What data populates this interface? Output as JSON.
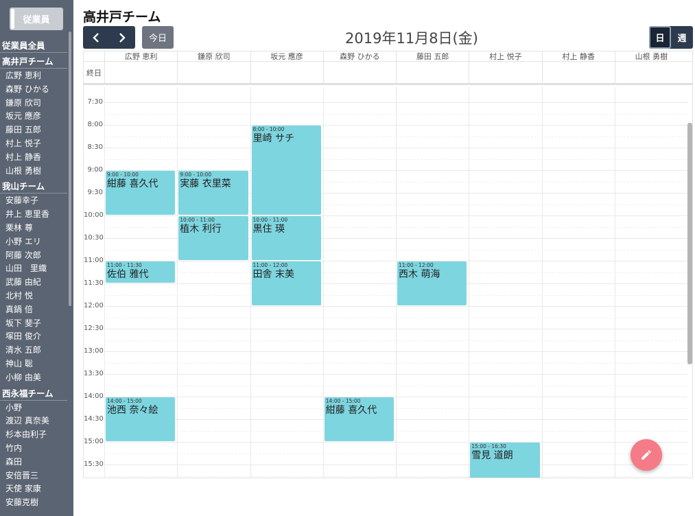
{
  "sidebar": {
    "toggle_label": "従業員",
    "groups": [
      {
        "name": "従業員全員",
        "items": []
      },
      {
        "name": "高井戸チーム",
        "items": [
          "広野 恵利",
          "森野 ひかる",
          "鎌原 欣司",
          "坂元 應彦",
          "藤田 五郎",
          "村上 悦子",
          "村上 静香",
          "山根 勇樹"
        ]
      },
      {
        "name": "我山チーム",
        "items": [
          "安藤幸子",
          "井上 恵里香",
          "栗林 尊",
          "小野 エリ",
          "阿藤 次郎",
          "山田　里織",
          "武藤 由紀",
          "北村 悦",
          "真鍋 倍",
          "坂下 斐子",
          "塚田 俊介",
          "清水 五郎",
          "神山 聡",
          "小柳 由美"
        ]
      },
      {
        "name": "西永福チーム",
        "items": [
          "小野",
          "渡辺 真奈美",
          "杉本由利子",
          "竹内",
          "森田",
          "安倍晋三",
          "天使 家康",
          "安藤克樹"
        ]
      }
    ]
  },
  "header": {
    "team_title": "高井戸チーム",
    "today_label": "今日",
    "date_label": "2019年11月8日(金)",
    "view_day": "日",
    "view_week": "週",
    "prev_icon": "chevron-left-icon",
    "next_icon": "chevron-right-icon"
  },
  "calendar": {
    "allday_label": "終日",
    "columns": [
      "広野 恵利",
      "鎌原 欣司",
      "坂元 應彦",
      "森野 ひかる",
      "藤田 五郎",
      "村上 悦子",
      "村上 静香",
      "山根 勇樹"
    ],
    "start_hour": 7,
    "time_labels": [
      "7:30",
      "8:00",
      "8:30",
      "9:00",
      "9:30",
      "10:00",
      "10:30",
      "11:00",
      "11:30",
      "12:00",
      "12:30",
      "13:00",
      "13:30",
      "14:00",
      "14:30",
      "15:00",
      "15:30"
    ],
    "events": [
      {
        "col": 2,
        "start": 8.0,
        "end": 10.0,
        "time": "8:00 - 10:00",
        "name": "里崎 サチ"
      },
      {
        "col": 0,
        "start": 9.0,
        "end": 10.0,
        "time": "9:00 - 10:00",
        "name": "紺藤 喜久代"
      },
      {
        "col": 1,
        "start": 9.0,
        "end": 10.0,
        "time": "9:00 - 10:00",
        "name": "実藤 衣里菜"
      },
      {
        "col": 1,
        "start": 10.0,
        "end": 11.0,
        "time": "10:00 - 11:00",
        "name": "植木 利行"
      },
      {
        "col": 2,
        "start": 10.0,
        "end": 11.0,
        "time": "10:00 - 11:00",
        "name": "黒住 瑛"
      },
      {
        "col": 0,
        "start": 11.0,
        "end": 11.5,
        "time": "11:00 - 11:30",
        "name": "佐伯 雅代"
      },
      {
        "col": 2,
        "start": 11.0,
        "end": 12.0,
        "time": "11:00 - 12:00",
        "name": "田舎 末美"
      },
      {
        "col": 4,
        "start": 11.0,
        "end": 12.0,
        "time": "11:00 - 12:00",
        "name": "西木 萌海"
      },
      {
        "col": 0,
        "start": 14.0,
        "end": 15.0,
        "time": "14:00 - 15:00",
        "name": "池西 奈々絵"
      },
      {
        "col": 3,
        "start": 14.0,
        "end": 15.0,
        "time": "14:00 - 15:00",
        "name": "紺藤 喜久代"
      },
      {
        "col": 5,
        "start": 15.0,
        "end": 16.5,
        "time": "15:00 - 16:30",
        "name": "雪見 道朗"
      }
    ],
    "event_color": "#7dd5df"
  },
  "fab": {
    "icon": "pencil-icon",
    "color": "#f47b87"
  }
}
